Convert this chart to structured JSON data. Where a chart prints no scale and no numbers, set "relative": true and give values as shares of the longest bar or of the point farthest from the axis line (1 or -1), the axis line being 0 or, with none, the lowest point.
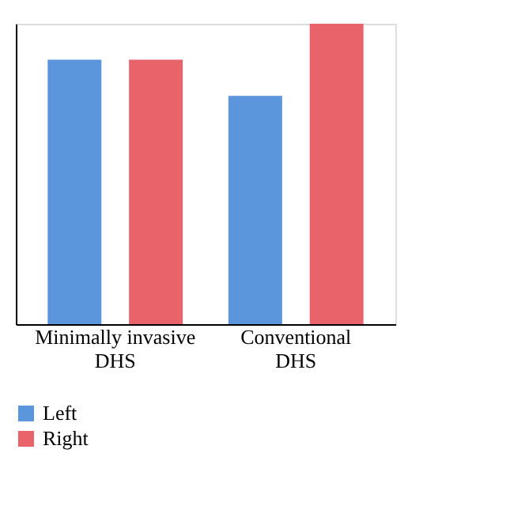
{
  "chart_data": {
    "type": "bar",
    "relative": true,
    "categories": [
      "Minimally invasive DHS",
      "Conventional DHS"
    ],
    "series": [
      {
        "name": "Left",
        "color": "#5b95dc",
        "values": [
          0.88,
          0.76
        ]
      },
      {
        "name": "Right",
        "color": "#e8636a",
        "values": [
          0.88,
          1.0
        ]
      }
    ],
    "legend": "bottom left",
    "grid": false
  }
}
